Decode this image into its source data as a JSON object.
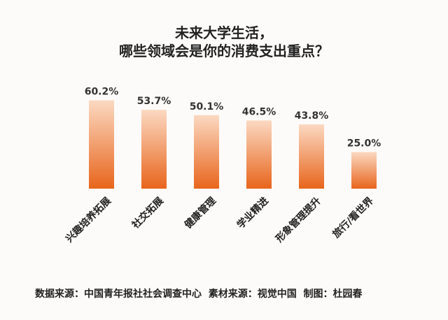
{
  "chart_data": {
    "type": "bar",
    "title_lines": [
      "未来大学生活，",
      "哪些领域会是你的消费支出重点？"
    ],
    "categories": [
      "兴趣培养拓展",
      "社交拓展",
      "健康管理",
      "学业精进",
      "形象管理提升",
      "旅行/看世界"
    ],
    "values": [
      60.2,
      53.7,
      50.1,
      46.5,
      43.8,
      25.0
    ],
    "value_labels": [
      "60.2%",
      "53.7%",
      "50.1%",
      "46.5%",
      "43.8%",
      "25.0%"
    ],
    "unit": "%",
    "ylim": [
      0,
      65
    ],
    "grid": false,
    "colors": {
      "bar_bottom": "#e8651c",
      "bar_top": "#fbd9c2"
    }
  },
  "footer": "数据来源：中国青年报社社会调查中心  素材来源：视觉中国  制图：杜园春"
}
